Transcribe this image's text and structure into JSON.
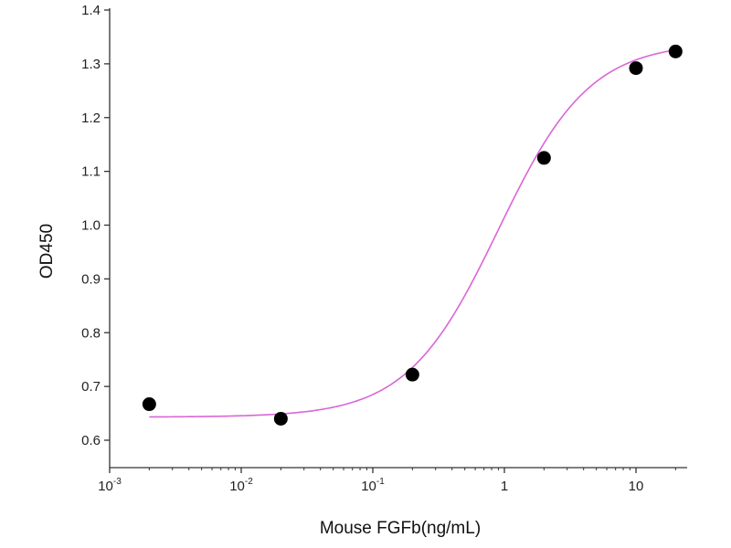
{
  "chart_data": {
    "type": "scatter",
    "title": "",
    "xlabel": "Mouse FGFb(ng/mL)",
    "ylabel": "OD450",
    "x_scale": "log",
    "xlim": [
      0.001,
      25
    ],
    "ylim": [
      0.55,
      1.4
    ],
    "x_ticks": [
      {
        "value": 0.001,
        "base": "10",
        "exp": "-3"
      },
      {
        "value": 0.01,
        "base": "10",
        "exp": "-2"
      },
      {
        "value": 0.1,
        "base": "10",
        "exp": "-1"
      },
      {
        "value": 1,
        "base": "1",
        "exp": ""
      },
      {
        "value": 10,
        "base": "10",
        "exp": ""
      }
    ],
    "y_ticks": [
      {
        "value": 0.6,
        "label": "0.6"
      },
      {
        "value": 0.7,
        "label": "0.7"
      },
      {
        "value": 0.8,
        "label": "0.8"
      },
      {
        "value": 0.9,
        "label": "0.9"
      },
      {
        "value": 1.0,
        "label": "1.0"
      },
      {
        "value": 1.1,
        "label": "1.1"
      },
      {
        "value": 1.2,
        "label": "1.2"
      },
      {
        "value": 1.3,
        "label": "1.3"
      },
      {
        "value": 1.4,
        "label": "1.4"
      }
    ],
    "points": [
      {
        "x": 0.002,
        "y": 0.667
      },
      {
        "x": 0.02,
        "y": 0.64
      },
      {
        "x": 0.2,
        "y": 0.722
      },
      {
        "x": 2,
        "y": 1.125
      },
      {
        "x": 10,
        "y": 1.292
      },
      {
        "x": 20,
        "y": 1.323
      }
    ],
    "fit": {
      "type": "4PL",
      "bottom": 0.643,
      "top": 1.34,
      "ec50": 0.9,
      "hill": 1.25,
      "x_range": [
        0.002,
        20
      ]
    },
    "colors": {
      "points": "#000000",
      "fit_line": "#d966d6",
      "axis": "#333333"
    },
    "grid": false,
    "legend": "none"
  }
}
